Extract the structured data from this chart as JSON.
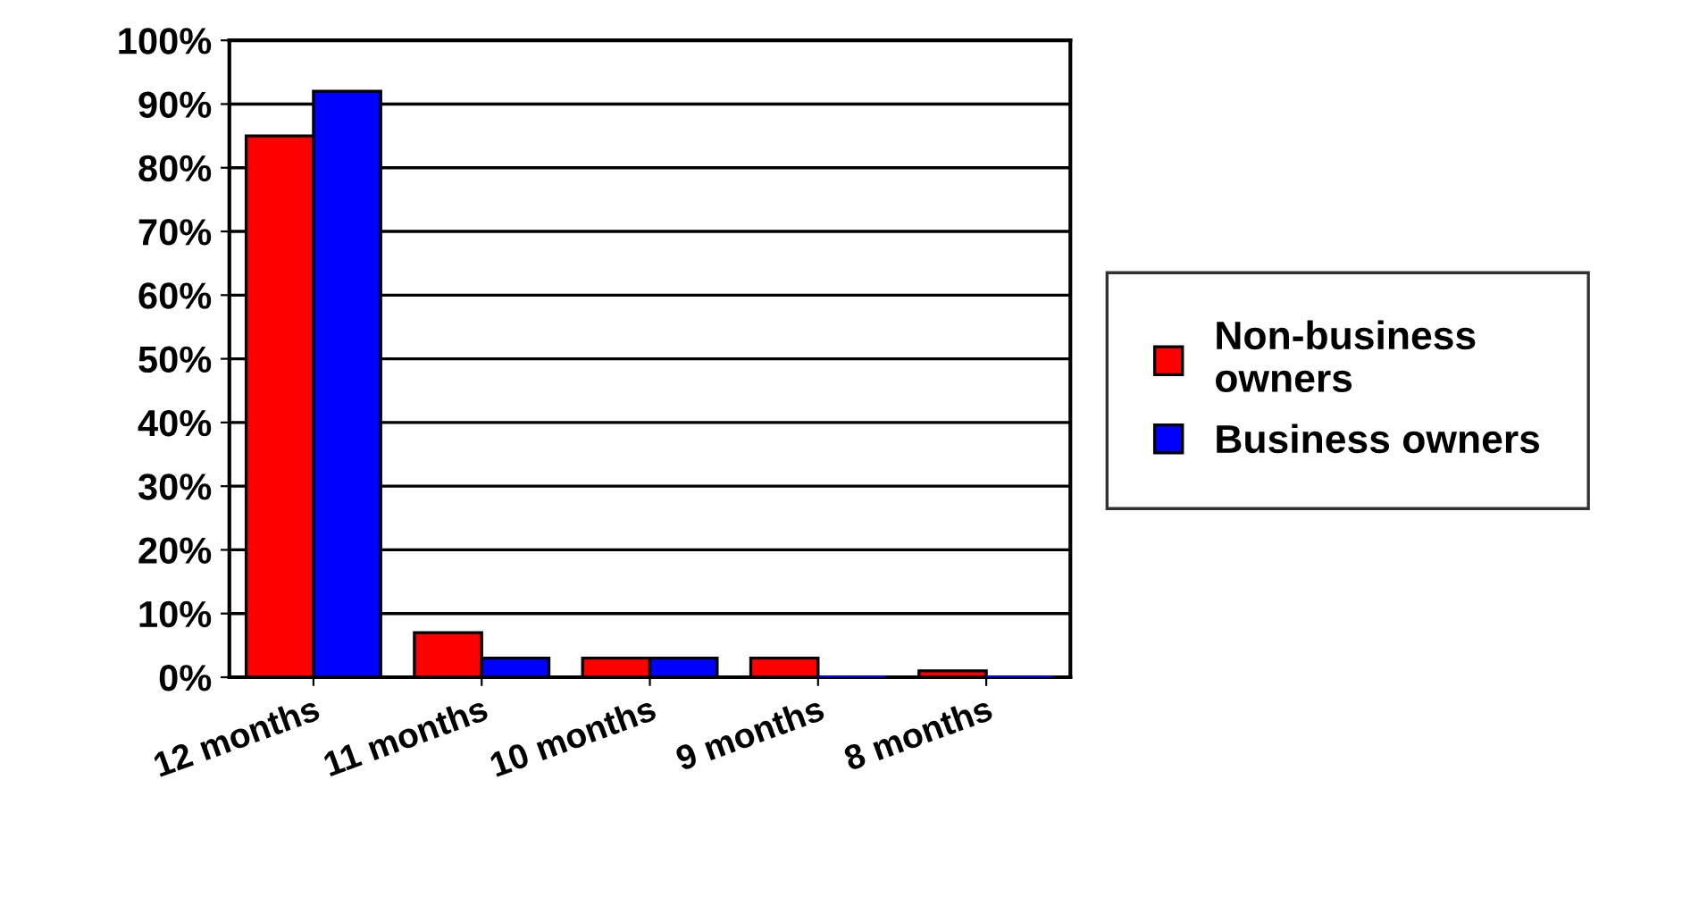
{
  "chart_data": {
    "type": "bar",
    "categories": [
      "12 months",
      "11 months",
      "10 months",
      "9 months",
      "8 months"
    ],
    "series": [
      {
        "name": "Non-business\nowners",
        "color": "#ff0000",
        "values": [
          85,
          7,
          3,
          3,
          1
        ]
      },
      {
        "name": "Business owners",
        "color": "#0000ff",
        "values": [
          92,
          3,
          3,
          0,
          0
        ]
      }
    ],
    "ylim": [
      0,
      100
    ],
    "yticks": [
      {
        "value": 0,
        "label": "0%"
      },
      {
        "value": 10,
        "label": "10%"
      },
      {
        "value": 20,
        "label": "20%"
      },
      {
        "value": 30,
        "label": "30%"
      },
      {
        "value": 40,
        "label": "40%"
      },
      {
        "value": 50,
        "label": "50%"
      },
      {
        "value": 60,
        "label": "60%"
      },
      {
        "value": 70,
        "label": "70%"
      },
      {
        "value": 80,
        "label": "80%"
      },
      {
        "value": 90,
        "label": "90%"
      },
      {
        "value": 100,
        "label": "100%"
      }
    ],
    "grid": "y",
    "legend": "right"
  }
}
